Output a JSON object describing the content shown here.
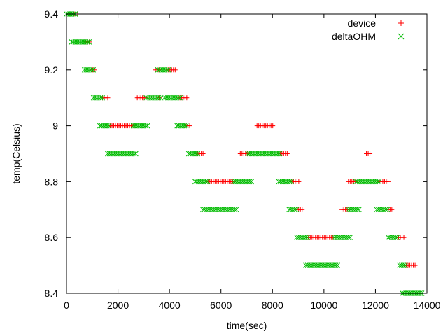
{
  "chart_data": {
    "type": "scatter",
    "title": "",
    "xlabel": "time(sec)",
    "ylabel": "temp(Celsius)",
    "xlim": [
      0,
      14000
    ],
    "ylim": [
      8.4,
      9.4
    ],
    "x_ticks": [
      0,
      2000,
      4000,
      6000,
      8000,
      10000,
      12000,
      14000
    ],
    "x_tick_labels": [
      "0",
      "2000",
      "4000",
      "6000",
      "8000",
      "10000",
      "12000",
      "14000"
    ],
    "y_ticks": [
      8.4,
      8.6,
      8.8,
      9.0,
      9.2,
      9.4
    ],
    "y_tick_labels": [
      "8.4",
      "8.6",
      "8.8",
      "9",
      "9.2",
      "9.4"
    ],
    "grid": false,
    "legend_position": "top-right",
    "series": [
      {
        "name": "device",
        "marker": "plus",
        "color": "#ff0000",
        "segments": [
          {
            "y": 9.4,
            "x0": 300,
            "x1": 470
          },
          {
            "y": 9.3,
            "x0": 750,
            "x1": 950
          },
          {
            "y": 9.2,
            "x0": 1020,
            "x1": 1120
          },
          {
            "y": 9.2,
            "x0": 3450,
            "x1": 3600
          },
          {
            "y": 9.2,
            "x0": 3950,
            "x1": 4250
          },
          {
            "y": 9.1,
            "x0": 1400,
            "x1": 1650
          },
          {
            "y": 9.1,
            "x0": 2750,
            "x1": 3150
          },
          {
            "y": 9.1,
            "x0": 3600,
            "x1": 3650
          },
          {
            "y": 9.1,
            "x0": 4400,
            "x1": 4700
          },
          {
            "y": 9.0,
            "x0": 1700,
            "x1": 2600
          },
          {
            "y": 9.0,
            "x0": 4650,
            "x1": 4850
          },
          {
            "y": 9.0,
            "x0": 7400,
            "x1": 8050
          },
          {
            "y": 8.9,
            "x0": 5100,
            "x1": 5350
          },
          {
            "y": 8.9,
            "x0": 6750,
            "x1": 7050
          },
          {
            "y": 8.9,
            "x0": 8300,
            "x1": 8600
          },
          {
            "y": 8.9,
            "x0": 11650,
            "x1": 11800
          },
          {
            "y": 8.8,
            "x0": 5500,
            "x1": 6500
          },
          {
            "y": 8.8,
            "x0": 8750,
            "x1": 9050
          },
          {
            "y": 8.8,
            "x0": 10950,
            "x1": 11250
          },
          {
            "y": 8.8,
            "x0": 12150,
            "x1": 12500
          },
          {
            "y": 8.7,
            "x0": 8950,
            "x1": 9200
          },
          {
            "y": 8.7,
            "x0": 10700,
            "x1": 10950
          },
          {
            "y": 8.7,
            "x0": 12500,
            "x1": 12700
          },
          {
            "y": 8.6,
            "x0": 9400,
            "x1": 10400
          },
          {
            "y": 8.6,
            "x0": 12900,
            "x1": 13150
          },
          {
            "y": 8.5,
            "x0": 13200,
            "x1": 13550
          }
        ]
      },
      {
        "name": "deltaOHM",
        "marker": "cross",
        "color": "#00bb00",
        "segments": [
          {
            "y": 9.4,
            "x0": 0,
            "x1": 380
          },
          {
            "y": 9.3,
            "x0": 200,
            "x1": 900
          },
          {
            "y": 9.2,
            "x0": 700,
            "x1": 1100
          },
          {
            "y": 9.2,
            "x0": 3550,
            "x1": 4000
          },
          {
            "y": 9.1,
            "x0": 1050,
            "x1": 1450
          },
          {
            "y": 9.1,
            "x0": 3100,
            "x1": 3650
          },
          {
            "y": 9.1,
            "x0": 3800,
            "x1": 4450
          },
          {
            "y": 9.0,
            "x0": 1300,
            "x1": 1700
          },
          {
            "y": 9.0,
            "x0": 2600,
            "x1": 3200
          },
          {
            "y": 9.0,
            "x0": 4300,
            "x1": 4700
          },
          {
            "y": 8.9,
            "x0": 1600,
            "x1": 2750
          },
          {
            "y": 8.9,
            "x0": 4750,
            "x1": 5150
          },
          {
            "y": 8.9,
            "x0": 7050,
            "x1": 8300
          },
          {
            "y": 8.8,
            "x0": 5000,
            "x1": 5500
          },
          {
            "y": 8.8,
            "x0": 6500,
            "x1": 7200
          },
          {
            "y": 8.8,
            "x0": 8250,
            "x1": 8750
          },
          {
            "y": 8.8,
            "x0": 11250,
            "x1": 12150
          },
          {
            "y": 8.7,
            "x0": 5300,
            "x1": 6650
          },
          {
            "y": 8.7,
            "x0": 8650,
            "x1": 8950
          },
          {
            "y": 8.7,
            "x0": 10950,
            "x1": 11400
          },
          {
            "y": 8.7,
            "x0": 12050,
            "x1": 12500
          },
          {
            "y": 8.6,
            "x0": 8950,
            "x1": 9400
          },
          {
            "y": 8.6,
            "x0": 10400,
            "x1": 11050
          },
          {
            "y": 8.6,
            "x0": 12500,
            "x1": 12900
          },
          {
            "y": 8.5,
            "x0": 9300,
            "x1": 10550
          },
          {
            "y": 8.5,
            "x0": 12950,
            "x1": 13200
          },
          {
            "y": 8.4,
            "x0": 13050,
            "x1": 13850
          }
        ]
      }
    ]
  }
}
